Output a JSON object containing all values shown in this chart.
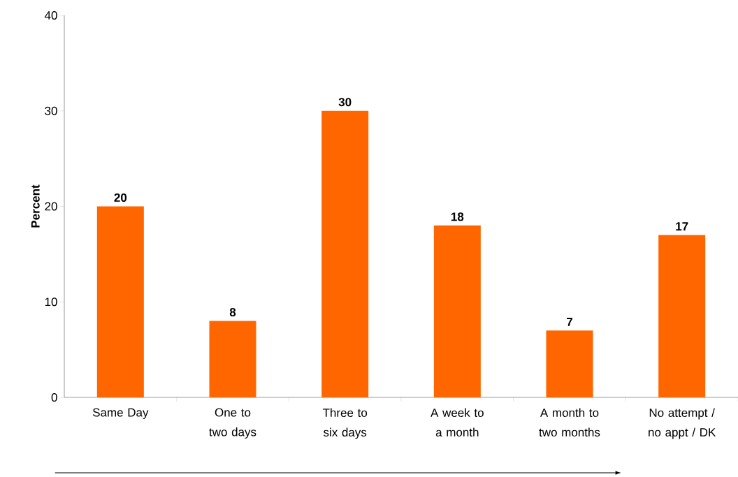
{
  "chart_data": {
    "type": "bar",
    "ylabel": "Percent",
    "categories": [
      "Same Day",
      "One to two days",
      "Three to six days",
      "A week to a month",
      "A month to two months",
      "No attempt / no appt / DK"
    ],
    "values": [
      20,
      8,
      30,
      18,
      7,
      17
    ],
    "color": "#ff6600",
    "ylim": [
      0,
      40
    ],
    "yticks": [
      0,
      10,
      20,
      30,
      40
    ],
    "data_labels": true,
    "grid": false
  }
}
